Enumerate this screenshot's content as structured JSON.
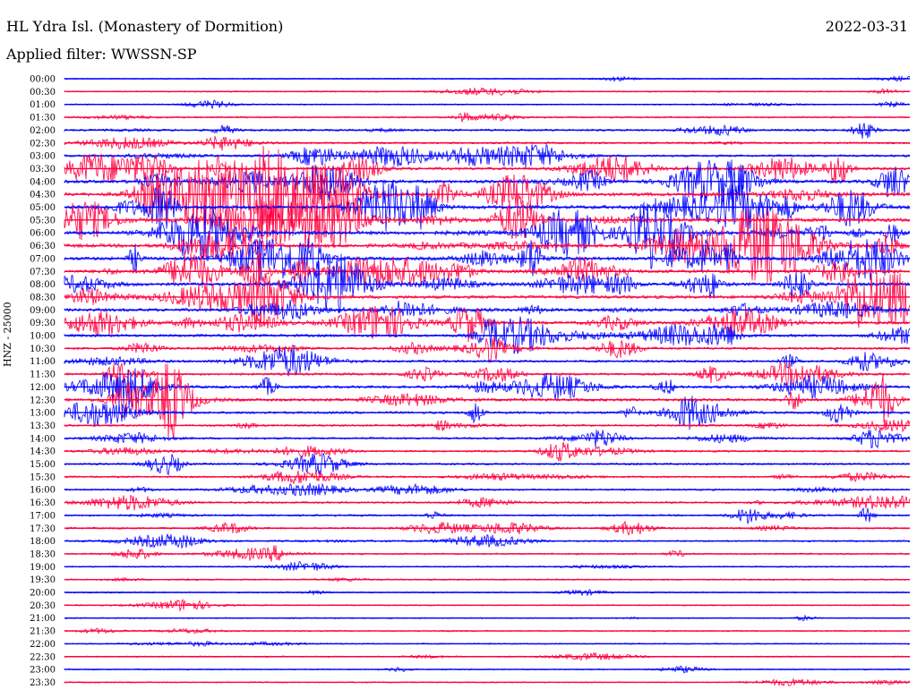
{
  "header": {
    "station": "HL Ydra Isl. (Monastery of Dormition)",
    "date": "2022-03-31",
    "filter": "Applied filter: WWSSN-SP"
  },
  "chart_data": {
    "type": "line",
    "title": "",
    "ylabel": "HNZ - 25000",
    "xlabel": "",
    "legend": "none",
    "grid": false,
    "colors": {
      "trace_a": "#0000ff",
      "trace_b": "#ff0040"
    },
    "row_labels": [
      "00:00",
      "00:30",
      "01:00",
      "01:30",
      "02:00",
      "02:30",
      "03:00",
      "03:30",
      "04:00",
      "04:30",
      "05:00",
      "05:30",
      "06:00",
      "06:30",
      "07:00",
      "07:30",
      "08:00",
      "08:30",
      "09:00",
      "09:30",
      "10:00",
      "10:30",
      "11:00",
      "11:30",
      "12:00",
      "12:30",
      "13:00",
      "13:30",
      "14:00",
      "14:30",
      "15:00",
      "15:30",
      "16:00",
      "16:30",
      "17:00",
      "17:30",
      "18:00",
      "18:30",
      "19:00",
      "19:30",
      "20:00",
      "20:30",
      "21:00",
      "21:30",
      "22:00",
      "22:30",
      "23:00",
      "23:30"
    ],
    "row_activity": [
      0.02,
      0.05,
      0.05,
      0.15,
      0.35,
      0.3,
      0.4,
      0.6,
      0.8,
      0.9,
      0.95,
      0.95,
      0.9,
      0.9,
      0.85,
      0.8,
      0.75,
      0.75,
      0.75,
      0.7,
      0.55,
      0.45,
      0.45,
      0.45,
      0.55,
      0.65,
      0.5,
      0.3,
      0.35,
      0.3,
      0.28,
      0.25,
      0.25,
      0.28,
      0.25,
      0.25,
      0.2,
      0.15,
      0.1,
      0.12,
      0.08,
      0.06,
      0.05,
      0.05,
      0.05,
      0.04,
      0.04,
      0.03
    ]
  }
}
